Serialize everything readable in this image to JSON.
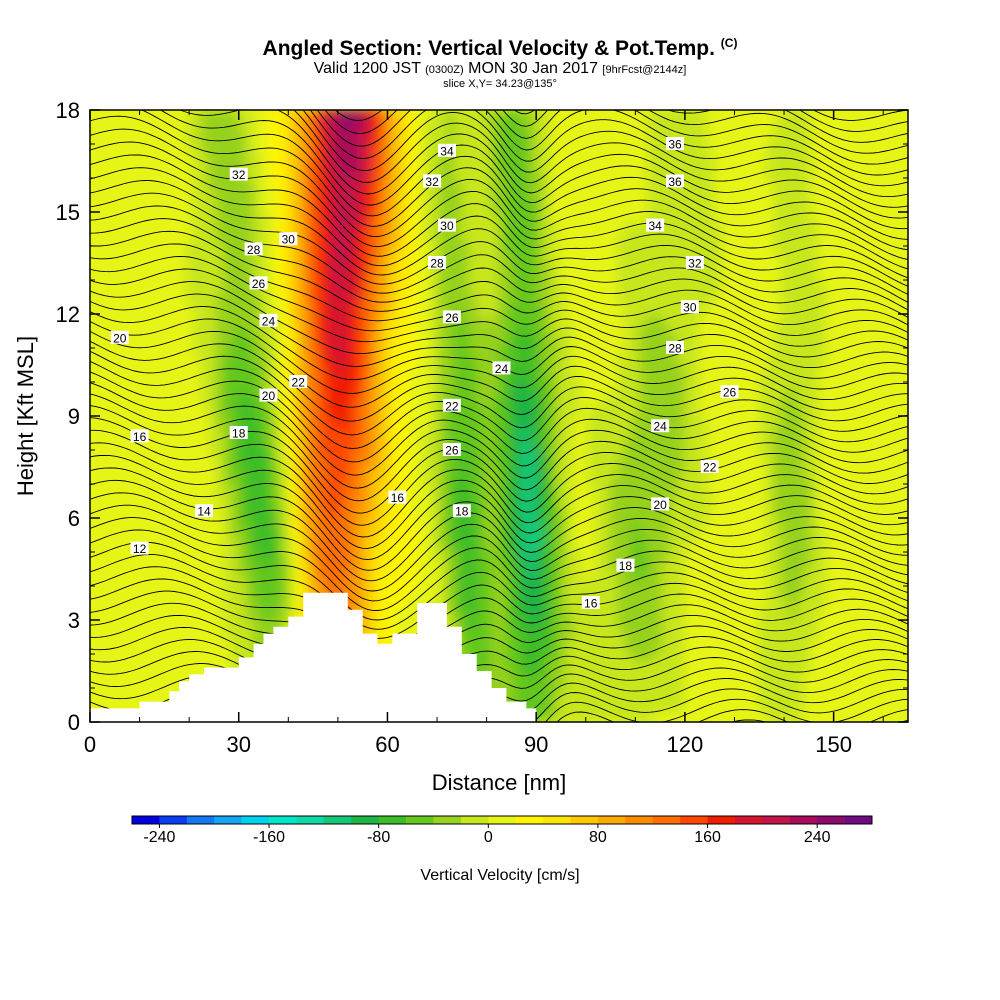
{
  "title": {
    "main": "Angled Section: Vertical Velocity & Pot.Temp.",
    "main_tag": "(C)",
    "valid_prefix": "Valid 1200 JST",
    "valid_zulu": "(0300Z)",
    "valid_date": "MON 30 Jan 2017",
    "valid_fcst": "[9hrFcst@2144z]",
    "slice": "slice X,Y= 34.23@135°"
  },
  "chart_data": {
    "type": "heatmap",
    "xlabel": "Distance [nm]",
    "ylabel": "Height [Kft MSL]",
    "xlim": [
      0,
      165
    ],
    "ylim": [
      0,
      18
    ],
    "x_ticks": [
      0,
      30,
      60,
      90,
      120,
      150
    ],
    "y_ticks": [
      0,
      3,
      6,
      9,
      12,
      15,
      18
    ],
    "grid": false,
    "colorbar": {
      "label": "Vertical Velocity [cm/s]",
      "min": -260,
      "max": 280,
      "step": 20,
      "tick_values": [
        -240,
        -160,
        -80,
        0,
        80,
        160,
        240
      ],
      "tick_labels": [
        "-240",
        "-160",
        "-80",
        "0",
        "80",
        "160",
        "240"
      ],
      "colors": [
        "#0000e0",
        "#0a3cf5",
        "#1478f5",
        "#14a5f5",
        "#00d2f0",
        "#00e6c8",
        "#0fd7a5",
        "#14c878",
        "#1eb446",
        "#3cbe28",
        "#64c81e",
        "#96d21e",
        "#c8e61e",
        "#e6f514",
        "#fff500",
        "#ffe600",
        "#ffc800",
        "#ffaa00",
        "#ff8c00",
        "#ff6e00",
        "#ff4600",
        "#f01e00",
        "#d7142d",
        "#c3144b",
        "#aa0a5a",
        "#8c0a6e",
        "#6e0a82"
      ]
    },
    "velocity_features": [
      {
        "kind": "updraft",
        "x_center_top": 52,
        "x_center_bottom": 48,
        "width": 9,
        "intensity": 230
      },
      {
        "kind": "downdraft",
        "x_center_top": 86,
        "x_center_bottom": 90,
        "width": 6,
        "intensity": -120
      },
      {
        "kind": "downdraft",
        "x_center_top": 26,
        "x_center_bottom": 40,
        "width": 7,
        "intensity": -90
      },
      {
        "kind": "downdraft",
        "x_center_top": 72,
        "x_center_bottom": 78,
        "width": 5,
        "intensity": -80
      },
      {
        "kind": "downdraft",
        "x_center_top": 120,
        "x_center_bottom": 108,
        "width": 9,
        "intensity": -50
      },
      {
        "kind": "downdraft",
        "x_center_top": 143,
        "x_center_bottom": 141,
        "width": 5,
        "intensity": -45
      }
    ],
    "terrain": [
      [
        0,
        0.4
      ],
      [
        10,
        0.4
      ],
      [
        10,
        0.6
      ],
      [
        16,
        0.6
      ],
      [
        16,
        0.9
      ],
      [
        18,
        0.9
      ],
      [
        18,
        1.2
      ],
      [
        20,
        1.2
      ],
      [
        20,
        1.4
      ],
      [
        23,
        1.4
      ],
      [
        23,
        1.6
      ],
      [
        30,
        1.6
      ],
      [
        30,
        1.9
      ],
      [
        33,
        1.9
      ],
      [
        33,
        2.3
      ],
      [
        35,
        2.3
      ],
      [
        35,
        2.6
      ],
      [
        37,
        2.6
      ],
      [
        37,
        2.8
      ],
      [
        40,
        2.8
      ],
      [
        40,
        3.1
      ],
      [
        43,
        3.1
      ],
      [
        43,
        3.8
      ],
      [
        52,
        3.8
      ],
      [
        52,
        3.3
      ],
      [
        55,
        3.3
      ],
      [
        55,
        2.6
      ],
      [
        58,
        2.6
      ],
      [
        58,
        2.3
      ],
      [
        61,
        2.3
      ],
      [
        61,
        2.6
      ],
      [
        66,
        2.6
      ],
      [
        66,
        3.5
      ],
      [
        72,
        3.5
      ],
      [
        72,
        2.8
      ],
      [
        75,
        2.8
      ],
      [
        75,
        2.0
      ],
      [
        78,
        2.0
      ],
      [
        78,
        1.5
      ],
      [
        81,
        1.5
      ],
      [
        81,
        1.0
      ],
      [
        84,
        1.0
      ],
      [
        84,
        0.6
      ],
      [
        88,
        0.6
      ],
      [
        88,
        0.4
      ],
      [
        90,
        0.4
      ],
      [
        90,
        0
      ]
    ],
    "theta_contours": [
      {
        "value": 12,
        "label_x": 10,
        "label_y": 5.1
      },
      {
        "value": 14,
        "label_x": 23,
        "label_y": 6.2
      },
      {
        "value": 16,
        "label_x": 10,
        "label_y": 8.4
      },
      {
        "value": 16,
        "label_x": 62,
        "label_y": 6.6
      },
      {
        "value": 16,
        "label_x": 101,
        "label_y": 3.5
      },
      {
        "value": 18,
        "label_x": 30,
        "label_y": 8.5
      },
      {
        "value": 18,
        "label_x": 75,
        "label_y": 6.2
      },
      {
        "value": 18,
        "label_x": 108,
        "label_y": 4.6
      },
      {
        "value": 20,
        "label_x": 6,
        "label_y": 11.3
      },
      {
        "value": 20,
        "label_x": 36,
        "label_y": 9.6
      },
      {
        "value": 20,
        "label_x": 115,
        "label_y": 6.4
      },
      {
        "value": 22,
        "label_x": 42,
        "label_y": 10.0
      },
      {
        "value": 22,
        "label_x": 73,
        "label_y": 9.3
      },
      {
        "value": 22,
        "label_x": 125,
        "label_y": 7.5
      },
      {
        "value": 24,
        "label_x": 36,
        "label_y": 11.8
      },
      {
        "value": 24,
        "label_x": 83,
        "label_y": 10.4
      },
      {
        "value": 24,
        "label_x": 115,
        "label_y": 8.7
      },
      {
        "value": 26,
        "label_x": 34,
        "label_y": 12.9
      },
      {
        "value": 26,
        "label_x": 73,
        "label_y": 8.0
      },
      {
        "value": 26,
        "label_x": 73,
        "label_y": 11.9
      },
      {
        "value": 26,
        "label_x": 129,
        "label_y": 9.7
      },
      {
        "value": 28,
        "label_x": 33,
        "label_y": 13.9
      },
      {
        "value": 28,
        "label_x": 70,
        "label_y": 13.5
      },
      {
        "value": 28,
        "label_x": 118,
        "label_y": 11.0
      },
      {
        "value": 30,
        "label_x": 40,
        "label_y": 14.2
      },
      {
        "value": 30,
        "label_x": 72,
        "label_y": 14.6
      },
      {
        "value": 30,
        "label_x": 121,
        "label_y": 12.2
      },
      {
        "value": 32,
        "label_x": 30,
        "label_y": 16.1
      },
      {
        "value": 32,
        "label_x": 69,
        "label_y": 15.9
      },
      {
        "value": 32,
        "label_x": 122,
        "label_y": 13.5
      },
      {
        "value": 34,
        "label_x": 72,
        "label_y": 16.8
      },
      {
        "value": 34,
        "label_x": 114,
        "label_y": 14.6
      },
      {
        "value": 36,
        "label_x": 118,
        "label_y": 15.9
      },
      {
        "value": 36,
        "label_x": 118,
        "label_y": 17.0
      }
    ]
  }
}
